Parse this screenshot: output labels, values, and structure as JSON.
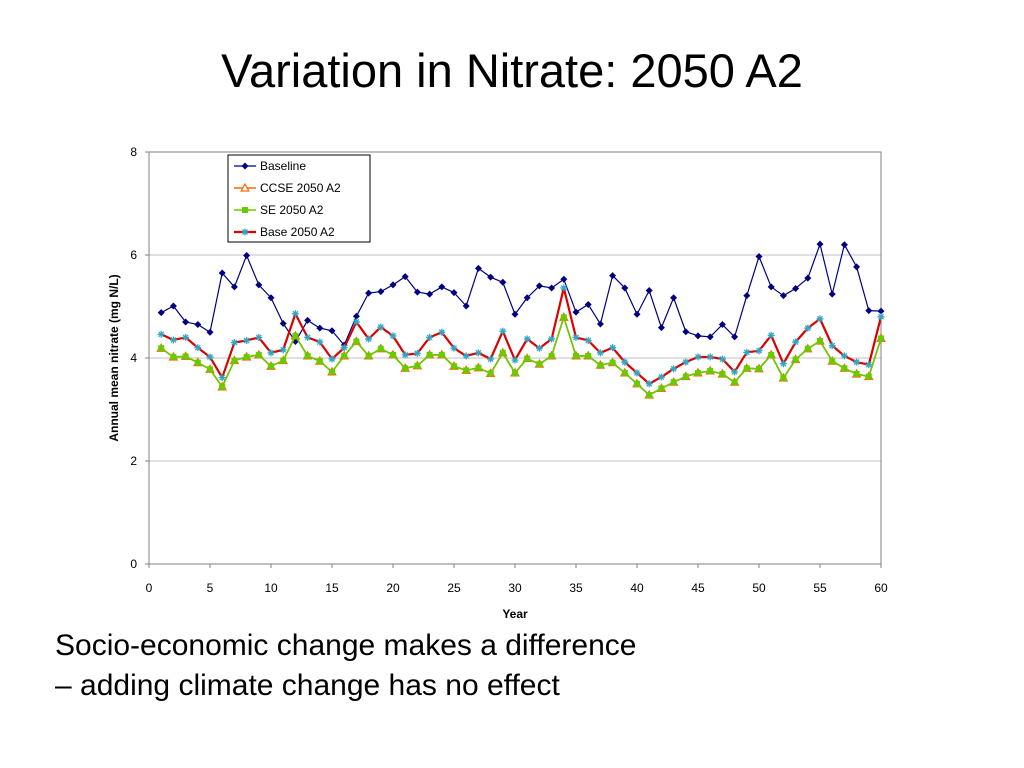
{
  "slide": {
    "title": "Variation in Nitrate: 2050 A2",
    "caption_lines": [
      "Socio-economic change makes a difference",
      "– adding climate change has no effect"
    ]
  },
  "chart_data": {
    "type": "line",
    "xlabel": "Year",
    "ylabel": "Annual mean nitrate (mg N/L)",
    "xlim": [
      0,
      60
    ],
    "ylim": [
      0,
      8
    ],
    "xticks": [
      0,
      5,
      10,
      15,
      20,
      25,
      30,
      35,
      40,
      45,
      50,
      55,
      60
    ],
    "yticks": [
      0,
      2,
      4,
      6,
      8
    ],
    "grid": "horizontal",
    "legend_position": "top-left",
    "x": [
      1,
      2,
      3,
      4,
      5,
      6,
      7,
      8,
      9,
      10,
      11,
      12,
      13,
      14,
      15,
      16,
      17,
      18,
      19,
      20,
      21,
      22,
      23,
      24,
      25,
      26,
      27,
      28,
      29,
      30,
      31,
      32,
      33,
      34,
      35,
      36,
      37,
      38,
      39,
      40,
      41,
      42,
      43,
      44,
      45,
      46,
      47,
      48,
      49,
      50,
      51,
      52,
      53,
      54,
      55,
      56,
      57,
      58,
      59,
      60
    ],
    "series": [
      {
        "name": "Baseline",
        "color": "#000080",
        "marker": "diamond",
        "values": [
          4.88,
          5.01,
          4.7,
          4.65,
          4.5,
          5.65,
          5.38,
          5.99,
          5.42,
          5.17,
          4.67,
          4.32,
          4.73,
          4.58,
          4.53,
          4.25,
          4.81,
          5.26,
          5.29,
          5.42,
          5.58,
          5.28,
          5.24,
          5.38,
          5.27,
          5.01,
          5.74,
          5.57,
          5.47,
          4.85,
          5.17,
          5.4,
          5.36,
          5.53,
          4.89,
          5.04,
          4.66,
          5.6,
          5.36,
          4.85,
          5.31,
          4.59,
          5.17,
          4.51,
          4.43,
          4.41,
          4.65,
          4.41,
          5.21,
          5.97,
          5.38,
          5.21,
          5.35,
          5.55,
          6.21,
          5.24,
          6.2,
          5.77,
          4.92,
          4.91
        ]
      },
      {
        "name": "CCSE 2050 A2",
        "color": "#ff6600",
        "marker": "triangle",
        "values": [
          4.19,
          4.02,
          4.03,
          3.91,
          3.78,
          3.44,
          3.95,
          4.02,
          4.06,
          3.84,
          3.95,
          4.43,
          4.04,
          3.94,
          3.73,
          4.04,
          4.32,
          4.04,
          4.18,
          4.06,
          3.8,
          3.85,
          4.06,
          4.06,
          3.84,
          3.76,
          3.81,
          3.7,
          4.1,
          3.71,
          3.99,
          3.88,
          4.04,
          4.79,
          4.04,
          4.04,
          3.86,
          3.91,
          3.71,
          3.5,
          3.28,
          3.41,
          3.53,
          3.64,
          3.71,
          3.75,
          3.69,
          3.53,
          3.8,
          3.79,
          4.06,
          3.61,
          3.97,
          4.18,
          4.33,
          3.94,
          3.8,
          3.69,
          3.64,
          4.38
        ]
      },
      {
        "name": "SE 2050 A2",
        "color": "#66cc00",
        "marker": "square",
        "values": [
          4.19,
          4.02,
          4.03,
          3.91,
          3.78,
          3.44,
          3.95,
          4.02,
          4.06,
          3.84,
          3.95,
          4.43,
          4.04,
          3.94,
          3.73,
          4.04,
          4.32,
          4.04,
          4.18,
          4.06,
          3.8,
          3.85,
          4.06,
          4.06,
          3.84,
          3.76,
          3.81,
          3.7,
          4.1,
          3.71,
          3.99,
          3.88,
          4.04,
          4.79,
          4.04,
          4.04,
          3.86,
          3.91,
          3.71,
          3.5,
          3.28,
          3.41,
          3.53,
          3.64,
          3.71,
          3.75,
          3.69,
          3.53,
          3.8,
          3.79,
          4.06,
          3.61,
          3.97,
          4.18,
          4.33,
          3.94,
          3.8,
          3.69,
          3.64,
          4.38
        ]
      },
      {
        "name": "Base 2050 A2",
        "color": "#dd0000",
        "marker": "star",
        "marker_color": "#33a5c0",
        "values": [
          4.46,
          4.35,
          4.4,
          4.2,
          4.02,
          3.62,
          4.3,
          4.34,
          4.4,
          4.1,
          4.16,
          4.86,
          4.4,
          4.31,
          3.98,
          4.2,
          4.7,
          4.37,
          4.6,
          4.43,
          4.06,
          4.09,
          4.4,
          4.5,
          4.19,
          4.04,
          4.1,
          3.98,
          4.52,
          3.96,
          4.37,
          4.19,
          4.37,
          5.36,
          4.4,
          4.34,
          4.1,
          4.2,
          3.92,
          3.71,
          3.5,
          3.63,
          3.79,
          3.92,
          4.02,
          4.02,
          3.98,
          3.73,
          4.11,
          4.14,
          4.44,
          3.89,
          4.31,
          4.58,
          4.76,
          4.24,
          4.04,
          3.92,
          3.87,
          4.8
        ]
      }
    ]
  }
}
